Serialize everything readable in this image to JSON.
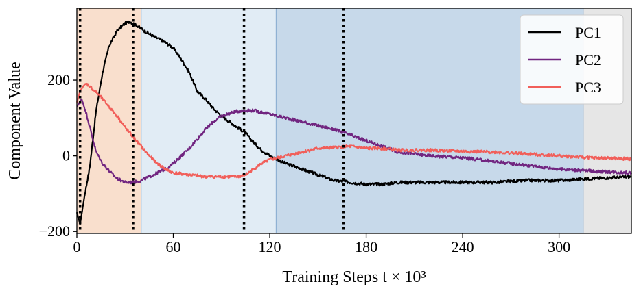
{
  "chart_data": {
    "type": "line",
    "title": "",
    "xlabel": "Training Steps t × 10³",
    "ylabel": "Component Value",
    "xlim": [
      0,
      345
    ],
    "ylim": [
      -205,
      390
    ],
    "x_ticks": [
      0,
      60,
      120,
      180,
      240,
      300
    ],
    "x_tick_labels": [
      "0",
      "60",
      "120",
      "180",
      "240",
      "300"
    ],
    "y_ticks": [
      -200,
      0,
      200
    ],
    "y_tick_labels": [
      "−200",
      "0",
      "200"
    ],
    "grid": false,
    "legend_position": "top-right",
    "phase_regions": [
      {
        "start": 0,
        "end": 40,
        "color": "#f9dfcd"
      },
      {
        "start": 40,
        "end": 124,
        "color": "#e1ecf5"
      },
      {
        "start": 124,
        "end": 315,
        "color": "#c7d9ea"
      },
      {
        "start": 315,
        "end": 345,
        "color": "#e6e6e6"
      }
    ],
    "phase_region_borders": [
      40,
      124,
      315
    ],
    "vertical_markers": [
      2,
      35,
      104,
      166
    ],
    "series": [
      {
        "name": "PC1",
        "color": "#000000",
        "x": [
          0,
          2,
          5,
          8,
          12,
          16,
          20,
          25,
          30,
          33,
          37,
          42,
          48,
          55,
          60,
          65,
          70,
          75,
          80,
          85,
          90,
          95,
          100,
          105,
          110,
          115,
          120,
          130,
          140,
          150,
          160,
          170,
          180,
          190,
          200,
          220,
          240,
          260,
          280,
          300,
          320,
          345
        ],
        "y": [
          -150,
          -180,
          -100,
          -30,
          120,
          220,
          290,
          330,
          350,
          355,
          345,
          330,
          315,
          300,
          285,
          255,
          220,
          170,
          150,
          125,
          105,
          90,
          75,
          60,
          35,
          15,
          0,
          -20,
          -35,
          -50,
          -65,
          -70,
          -75,
          -75,
          -70,
          -70,
          -70,
          -70,
          -65,
          -65,
          -60,
          -55
        ]
      },
      {
        "name": "PC2",
        "color": "#712580",
        "x": [
          0,
          3,
          6,
          9,
          12,
          16,
          20,
          25,
          30,
          35,
          40,
          45,
          50,
          55,
          60,
          65,
          70,
          75,
          80,
          85,
          90,
          95,
          100,
          105,
          110,
          115,
          120,
          130,
          140,
          150,
          160,
          170,
          180,
          190,
          200,
          220,
          240,
          260,
          280,
          300,
          320,
          345
        ],
        "y": [
          130,
          150,
          110,
          60,
          10,
          -20,
          -40,
          -60,
          -70,
          -70,
          -65,
          -55,
          -45,
          -35,
          -20,
          0,
          20,
          45,
          70,
          90,
          105,
          112,
          118,
          120,
          120,
          115,
          110,
          100,
          90,
          80,
          70,
          55,
          40,
          25,
          10,
          0,
          -5,
          -15,
          -25,
          -35,
          -40,
          -45
        ]
      },
      {
        "name": "PC3",
        "color": "#f15f5a",
        "x": [
          0,
          2,
          4,
          6,
          8,
          10,
          14,
          18,
          22,
          26,
          30,
          35,
          40,
          45,
          50,
          55,
          60,
          70,
          80,
          90,
          100,
          105,
          110,
          115,
          120,
          130,
          140,
          150,
          160,
          170,
          180,
          190,
          200,
          220,
          240,
          260,
          280,
          300,
          320,
          345
        ],
        "y": [
          140,
          170,
          185,
          190,
          185,
          175,
          160,
          140,
          120,
          100,
          75,
          50,
          25,
          0,
          -20,
          -35,
          -45,
          -50,
          -55,
          -55,
          -55,
          -50,
          -35,
          -20,
          -10,
          0,
          10,
          20,
          22,
          25,
          20,
          20,
          15,
          15,
          12,
          10,
          5,
          0,
          -5,
          -8
        ]
      }
    ]
  }
}
